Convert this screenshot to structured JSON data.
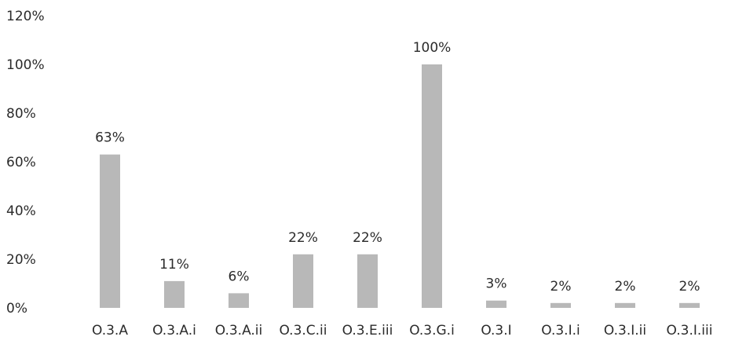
{
  "chart_data": {
    "type": "bar",
    "categories": [
      "O.3.A",
      "O.3.A.i",
      "O.3.A.ii",
      "O.3.C.ii",
      "O.3.E.iii",
      "O.3.G.i",
      "O.3.I",
      "O.3.I.i",
      "O.3.I.ii",
      "O.3.I.iii"
    ],
    "values": [
      63,
      11,
      6,
      22,
      22,
      100,
      3,
      2,
      2,
      2
    ],
    "data_labels": [
      "63%",
      "11%",
      "6%",
      "22%",
      "22%",
      "100%",
      "3%",
      "2%",
      "2%",
      "2%"
    ],
    "y_ticks": [
      "0%",
      "20%",
      "40%",
      "60%",
      "80%",
      "100%",
      "120%"
    ],
    "ylim": [
      0,
      120
    ],
    "title": "",
    "xlabel": "",
    "ylabel": "",
    "grid": false,
    "legend": "none",
    "bar_color": "#b8b8b8",
    "small_bar_color": "#5a5a5a",
    "text_color": "#2b2b2b"
  }
}
